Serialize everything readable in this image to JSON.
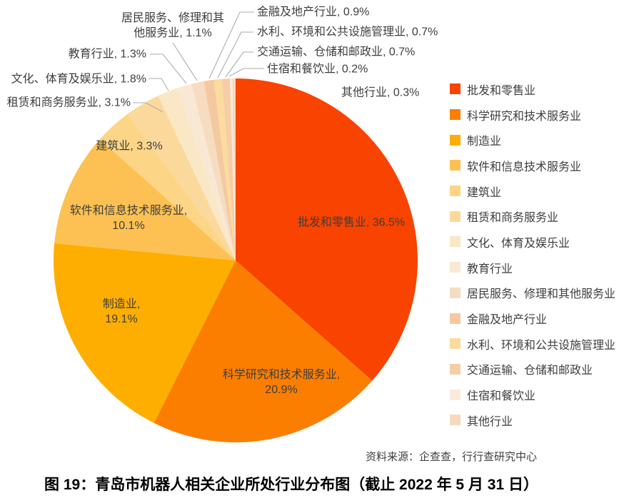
{
  "figure": {
    "caption": "图 19：青岛市机器人相关企业所处行业分布图（截止 2022 年 5 月 31 日）",
    "source": "资料来源：企查查，行行查研究中心"
  },
  "chart_data": {
    "type": "pie",
    "title": "青岛市机器人相关企业所处行业分布图（截止 2022 年 5 月 31 日）",
    "unit": "%",
    "start_angle_deg": 0,
    "direction": "clockwise",
    "legend_position": "right",
    "leader_line_color": "#adadad",
    "slices": [
      {
        "name": "批发和零售业",
        "value": 36.5,
        "label": "批发和零售业, 36.5%",
        "color": "#F84301"
      },
      {
        "name": "科学研究和技术服务业",
        "value": 20.9,
        "label": "科学研究和技术服务业,\n20.9%",
        "color": "#FB7E01"
      },
      {
        "name": "制造业",
        "value": 19.1,
        "label": "制造业,\n19.1%",
        "color": "#FEAE00"
      },
      {
        "name": "软件和信息技术服务业",
        "value": 10.1,
        "label": "软件和信息技术服务业,\n10.1%",
        "color": "#FCC152"
      },
      {
        "name": "建筑业",
        "value": 3.3,
        "label": "建筑业, 3.3%",
        "color": "#FCD586"
      },
      {
        "name": "租赁和商务服务业",
        "value": 3.1,
        "label": "租赁和商务服务业, 3.1%",
        "color": "#FBD99C"
      },
      {
        "name": "文化、体育及娱乐业",
        "value": 1.8,
        "label": "文化、体育及娱乐业, 1.8%",
        "color": "#FAE7C5"
      },
      {
        "name": "教育行业",
        "value": 1.3,
        "label": "教育行业, 1.3%",
        "color": "#F9E8D3"
      },
      {
        "name": "居民服务、修理和其他服务业",
        "value": 1.1,
        "label": "居民服务、修理和其\n他服务业, 1.1%",
        "color": "#F6DCC0"
      },
      {
        "name": "金融及地产行业",
        "value": 0.9,
        "label": "金融及地产行业, 0.9%",
        "color": "#F5C9A0"
      },
      {
        "name": "水利、环境和公共设施管理业",
        "value": 0.7,
        "label": "水利、环境和公共设施管理业, 0.7%",
        "color": "#FBDC9E"
      },
      {
        "name": "交通运输、仓储和邮政业",
        "value": 0.7,
        "label": "交通运输、仓储和邮政业, 0.7%",
        "color": "#F5CDA6"
      },
      {
        "name": "住宿和餐饮业",
        "value": 0.2,
        "label": "住宿和餐饮业, 0.2%",
        "color": "#FBEADB"
      },
      {
        "name": "其他行业",
        "value": 0.3,
        "label": "其他行业, 0.3%",
        "color": "#F6D9BD"
      }
    ]
  }
}
